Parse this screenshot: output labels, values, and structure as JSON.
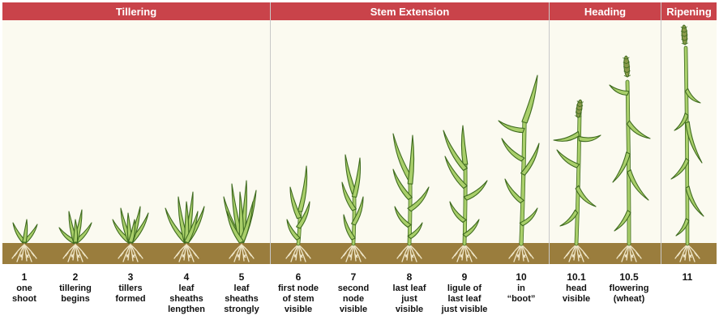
{
  "phases": [
    {
      "id": "tillering",
      "label": "Tillering"
    },
    {
      "id": "stem-extension",
      "label": "Stem Extension"
    },
    {
      "id": "heading",
      "label": "Heading"
    },
    {
      "id": "ripening",
      "label": "Ripening"
    }
  ],
  "stages": [
    {
      "num": "1",
      "desc": [
        "one",
        "shoot"
      ]
    },
    {
      "num": "2",
      "desc": [
        "tillering",
        "begins"
      ]
    },
    {
      "num": "3",
      "desc": [
        "tillers",
        "formed"
      ]
    },
    {
      "num": "4",
      "desc": [
        "leaf",
        "sheaths",
        "lengthen"
      ]
    },
    {
      "num": "5",
      "desc": [
        "leaf",
        "sheaths",
        "strongly"
      ]
    },
    {
      "num": "6",
      "desc": [
        "first node",
        "of stem",
        "visible"
      ]
    },
    {
      "num": "7",
      "desc": [
        "second",
        "node",
        "visible"
      ]
    },
    {
      "num": "8",
      "desc": [
        "last leaf",
        "just",
        "visible"
      ]
    },
    {
      "num": "9",
      "desc": [
        "ligule of",
        "last leaf",
        "just visible"
      ]
    },
    {
      "num": "10",
      "desc": [
        "in",
        "“boot”"
      ]
    },
    {
      "num": "10.1",
      "desc": [
        "head",
        "visible"
      ]
    },
    {
      "num": "10.5",
      "desc": [
        "flowering",
        "(wheat)"
      ]
    },
    {
      "num": "11",
      "desc": []
    }
  ],
  "colors": {
    "header": "#c9434a",
    "panel": "#fbfaf0",
    "soil": "#9a7d3d",
    "leaf_fill": "#a9cf6a",
    "leaf_stroke": "#3f6b1f",
    "root": "#efe6c8",
    "head": "#8a9a4a"
  }
}
